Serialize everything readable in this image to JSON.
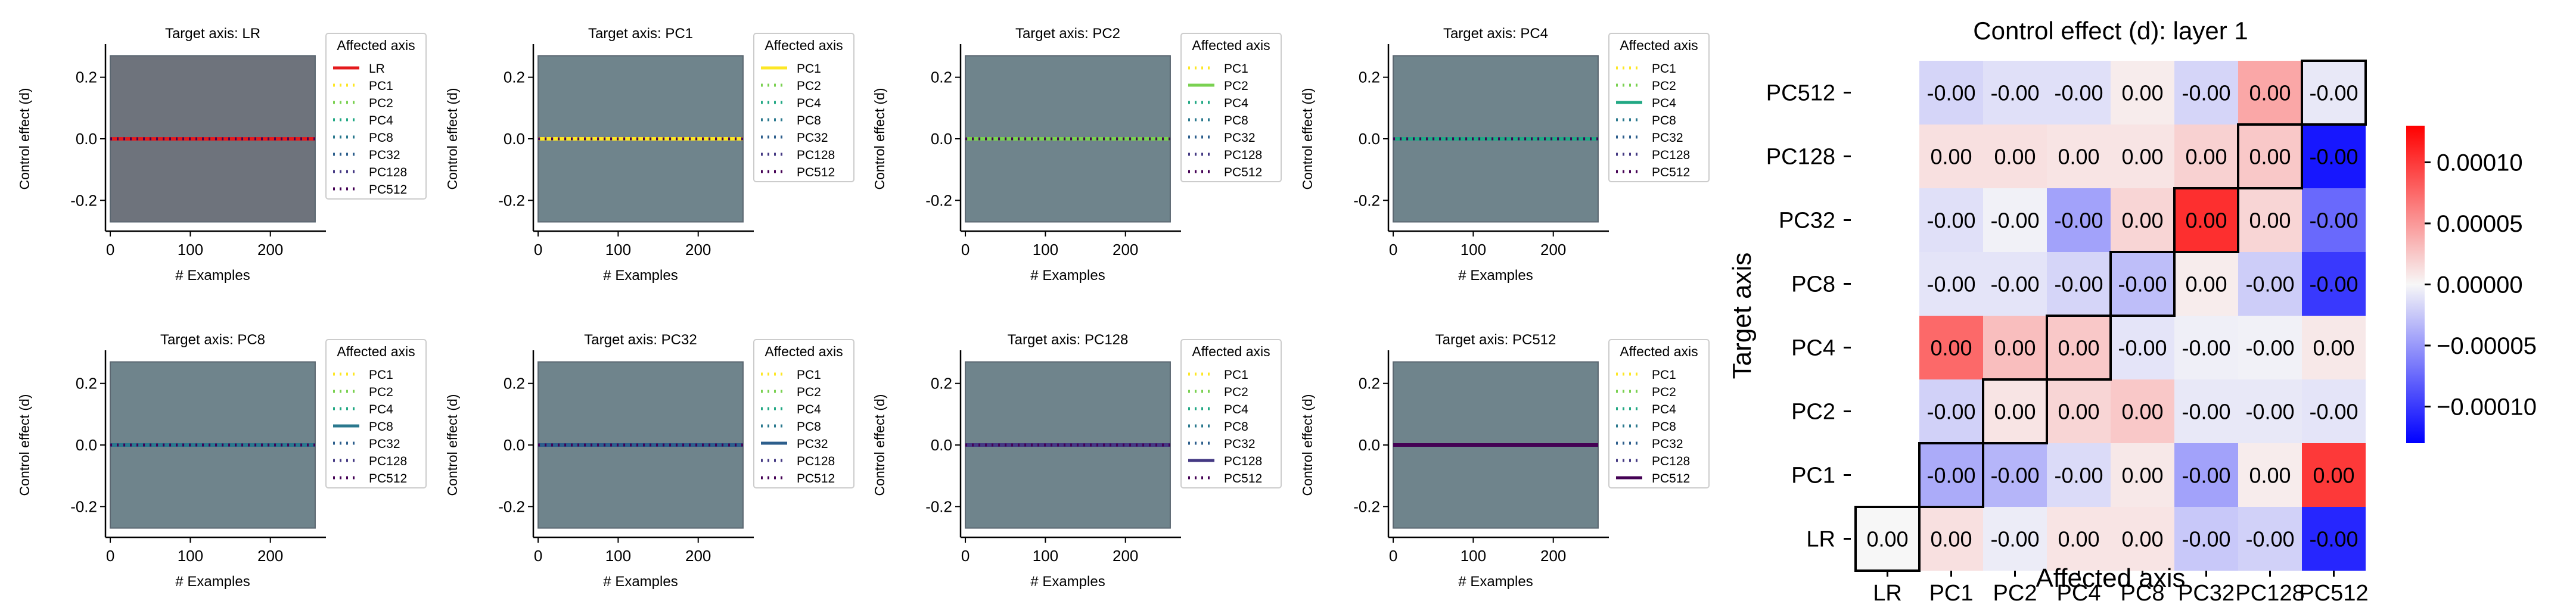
{
  "chart_data": {
    "type": "composite",
    "colors": {
      "LR": "#e41a1c",
      "PC1": "#fde725",
      "PC2": "#7ad151",
      "PC4": "#22a884",
      "PC8": "#2a788e",
      "PC32": "#2c5e8c",
      "PC128": "#443983",
      "PC512": "#440154",
      "band_LR": "#6e737c",
      "band_PC": "#6f848c",
      "diverging_neg": "#0000ff",
      "diverging_mid": "#f7f7f7",
      "diverging_pos": "#ff0000"
    },
    "line_panels": [
      {
        "title": "Target axis: LR",
        "target": "LR",
        "xlabel": "# Examples",
        "ylabel": "Control effect (d)",
        "xlim": [
          -6,
          262
        ],
        "ylim": [
          -0.3,
          0.3
        ],
        "xticks": [
          "0",
          "100",
          "200"
        ],
        "yticks": [
          "0.2",
          "0.0",
          "-0.2"
        ],
        "band": [
          -0.27,
          0.27
        ],
        "legend_title": "Affected axis",
        "legend": [
          "LR",
          "PC1",
          "PC2",
          "PC4",
          "PC8",
          "PC32",
          "PC128",
          "PC512"
        ],
        "x": [
          0,
          256
        ],
        "y": [
          0.0,
          0.0
        ]
      },
      {
        "title": "Target axis: PC1",
        "target": "PC1",
        "xlabel": "# Examples",
        "ylabel": "Control effect (d)",
        "xlim": [
          -6,
          262
        ],
        "ylim": [
          -0.3,
          0.3
        ],
        "xticks": [
          "0",
          "100",
          "200"
        ],
        "yticks": [
          "0.2",
          "0.0",
          "-0.2"
        ],
        "band": [
          -0.27,
          0.27
        ],
        "legend_title": "Affected axis",
        "legend": [
          "PC1",
          "PC2",
          "PC4",
          "PC8",
          "PC32",
          "PC128",
          "PC512"
        ],
        "x": [
          0,
          256
        ],
        "y": [
          0.0,
          0.0
        ]
      },
      {
        "title": "Target axis: PC2",
        "target": "PC2",
        "xlabel": "# Examples",
        "ylabel": "Control effect (d)",
        "xlim": [
          -6,
          262
        ],
        "ylim": [
          -0.3,
          0.3
        ],
        "xticks": [
          "0",
          "100",
          "200"
        ],
        "yticks": [
          "0.2",
          "0.0",
          "-0.2"
        ],
        "band": [
          -0.27,
          0.27
        ],
        "legend_title": "Affected axis",
        "legend": [
          "PC1",
          "PC2",
          "PC4",
          "PC8",
          "PC32",
          "PC128",
          "PC512"
        ],
        "x": [
          0,
          256
        ],
        "y": [
          0.0,
          0.0
        ]
      },
      {
        "title": "Target axis: PC4",
        "target": "PC4",
        "xlabel": "# Examples",
        "ylabel": "Control effect (d)",
        "xlim": [
          -6,
          262
        ],
        "ylim": [
          -0.3,
          0.3
        ],
        "xticks": [
          "0",
          "100",
          "200"
        ],
        "yticks": [
          "0.2",
          "0.0",
          "-0.2"
        ],
        "band": [
          -0.27,
          0.27
        ],
        "legend_title": "Affected axis",
        "legend": [
          "PC1",
          "PC2",
          "PC4",
          "PC8",
          "PC32",
          "PC128",
          "PC512"
        ],
        "x": [
          0,
          256
        ],
        "y": [
          0.0,
          0.0
        ]
      },
      {
        "title": "Target axis: PC8",
        "target": "PC8",
        "xlabel": "# Examples",
        "ylabel": "Control effect (d)",
        "xlim": [
          -6,
          262
        ],
        "ylim": [
          -0.3,
          0.3
        ],
        "xticks": [
          "0",
          "100",
          "200"
        ],
        "yticks": [
          "0.2",
          "0.0",
          "-0.2"
        ],
        "band": [
          -0.27,
          0.27
        ],
        "legend_title": "Affected axis",
        "legend": [
          "PC1",
          "PC2",
          "PC4",
          "PC8",
          "PC32",
          "PC128",
          "PC512"
        ],
        "x": [
          0,
          256
        ],
        "y": [
          0.0,
          0.0
        ]
      },
      {
        "title": "Target axis: PC32",
        "target": "PC32",
        "xlabel": "# Examples",
        "ylabel": "Control effect (d)",
        "xlim": [
          -6,
          262
        ],
        "ylim": [
          -0.3,
          0.3
        ],
        "xticks": [
          "0",
          "100",
          "200"
        ],
        "yticks": [
          "0.2",
          "0.0",
          "-0.2"
        ],
        "band": [
          -0.27,
          0.27
        ],
        "legend_title": "Affected axis",
        "legend": [
          "PC1",
          "PC2",
          "PC4",
          "PC8",
          "PC32",
          "PC128",
          "PC512"
        ],
        "x": [
          0,
          256
        ],
        "y": [
          0.0,
          0.0
        ]
      },
      {
        "title": "Target axis: PC128",
        "target": "PC128",
        "xlabel": "# Examples",
        "ylabel": "Control effect (d)",
        "xlim": [
          -6,
          262
        ],
        "ylim": [
          -0.3,
          0.3
        ],
        "xticks": [
          "0",
          "100",
          "200"
        ],
        "yticks": [
          "0.2",
          "0.0",
          "-0.2"
        ],
        "band": [
          -0.27,
          0.27
        ],
        "legend_title": "Affected axis",
        "legend": [
          "PC1",
          "PC2",
          "PC4",
          "PC8",
          "PC32",
          "PC128",
          "PC512"
        ],
        "x": [
          0,
          256
        ],
        "y": [
          0.0,
          0.0
        ]
      },
      {
        "title": "Target axis: PC512",
        "target": "PC512",
        "xlabel": "# Examples",
        "ylabel": "Control effect (d)",
        "xlim": [
          -6,
          262
        ],
        "ylim": [
          -0.3,
          0.3
        ],
        "xticks": [
          "0",
          "100",
          "200"
        ],
        "yticks": [
          "0.2",
          "0.0",
          "-0.2"
        ],
        "band": [
          -0.27,
          0.27
        ],
        "legend_title": "Affected axis",
        "legend": [
          "PC1",
          "PC2",
          "PC4",
          "PC8",
          "PC32",
          "PC128",
          "PC512"
        ],
        "x": [
          0,
          256
        ],
        "y": [
          0.0,
          0.0
        ]
      }
    ],
    "heatmap": {
      "type": "heatmap",
      "title": "Control effect (d): layer 1",
      "xlabel": "Affected axis",
      "ylabel": "Target axis",
      "x_categories": [
        "LR",
        "PC1",
        "PC2",
        "PC4",
        "PC8",
        "PC32",
        "PC128",
        "PC512"
      ],
      "y_categories_top_to_bottom": [
        "PC512",
        "PC128",
        "PC32",
        "PC8",
        "PC4",
        "PC2",
        "PC1",
        "LR"
      ],
      "rows": [
        {
          "target": "PC512",
          "labels": [
            null,
            "-0.00",
            "-0.00",
            "-0.00",
            "0.00",
            "-0.00",
            "0.00",
            "-0.00"
          ],
          "values": [
            null,
            -1.8e-05,
            -1.2e-05,
            -1.2e-05,
            6e-06,
            -1.8e-05,
            4.2e-05,
            -8e-06
          ]
        },
        {
          "target": "PC128",
          "labels": [
            null,
            "0.00",
            "0.00",
            "0.00",
            "0.00",
            "0.00",
            "0.00",
            "-0.00"
          ],
          "values": [
            null,
            1.2e-05,
            1.2e-05,
            1e-05,
            1e-05,
            2e-05,
            2.5e-05,
            -0.000118
          ]
        },
        {
          "target": "PC32",
          "labels": [
            null,
            "-0.00",
            "-0.00",
            "-0.00",
            "0.00",
            "0.00",
            "0.00",
            "-0.00"
          ],
          "values": [
            null,
            -1.2e-05,
            -3e-06,
            -4.5e-05,
            1.8e-05,
            0.000105,
            1.8e-05,
            -7.5e-05
          ]
        },
        {
          "target": "PC8",
          "labels": [
            null,
            "-0.00",
            "-0.00",
            "-0.00",
            "-0.00",
            "0.00",
            "-0.00",
            "-0.00"
          ],
          "values": [
            null,
            -1e-05,
            -1e-05,
            -1.8e-05,
            -3e-05,
            6e-06,
            -2.2e-05,
            -0.0001
          ]
        },
        {
          "target": "PC4",
          "labels": [
            null,
            "0.00",
            "0.00",
            "0.00",
            "-0.00",
            "-0.00",
            "-0.00",
            "0.00"
          ],
          "values": [
            null,
            7.5e-05,
            3e-05,
            2.5e-05,
            -1e-05,
            -4e-06,
            -3e-06,
            8e-06
          ]
        },
        {
          "target": "PC2",
          "labels": [
            null,
            "-0.00",
            "0.00",
            "0.00",
            "0.00",
            "-0.00",
            "-0.00",
            "-0.00"
          ],
          "values": [
            null,
            -2e-05,
            1e-05,
            1.8e-05,
            2.5e-05,
            -8e-06,
            -8e-06,
            -1e-05
          ]
        },
        {
          "target": "PC1",
          "labels": [
            null,
            "-0.00",
            "-0.00",
            "-0.00",
            "0.00",
            "-0.00",
            "0.00",
            "0.00"
          ],
          "values": [
            null,
            -4e-05,
            -3.5e-05,
            -1.5e-05,
            8e-06,
            -4.5e-05,
            6e-06,
            0.0001
          ]
        },
        {
          "target": "LR",
          "labels": [
            "0.00",
            "0.00",
            "-0.00",
            "0.00",
            "0.00",
            "-0.00",
            "-0.00",
            "-0.00"
          ],
          "values": [
            0.0,
            1.2e-05,
            -6e-06,
            1e-05,
            1e-05,
            -2.5e-05,
            -2e-05,
            -0.00011
          ]
        }
      ],
      "diagonal_boxes": [
        {
          "target": "PC512",
          "affected": "PC512"
        },
        {
          "target": "PC128",
          "affected": "PC128"
        },
        {
          "target": "PC32",
          "affected": "PC32"
        },
        {
          "target": "PC8",
          "affected": "PC8"
        },
        {
          "target": "PC4",
          "affected": "PC4"
        },
        {
          "target": "PC2",
          "affected": "PC2"
        },
        {
          "target": "PC1",
          "affected": "PC1"
        },
        {
          "target": "LR",
          "affected": "LR"
        }
      ],
      "colorbar": {
        "vmin": -0.00013,
        "vmax": 0.00013,
        "ticks": [
          {
            "value": 0.0001,
            "label": "0.00010"
          },
          {
            "value": 5e-05,
            "label": "0.00005"
          },
          {
            "value": 0.0,
            "label": "0.00000"
          },
          {
            "value": -5e-05,
            "label": "−0.00005"
          },
          {
            "value": -0.0001,
            "label": "−0.00010"
          }
        ]
      }
    }
  }
}
